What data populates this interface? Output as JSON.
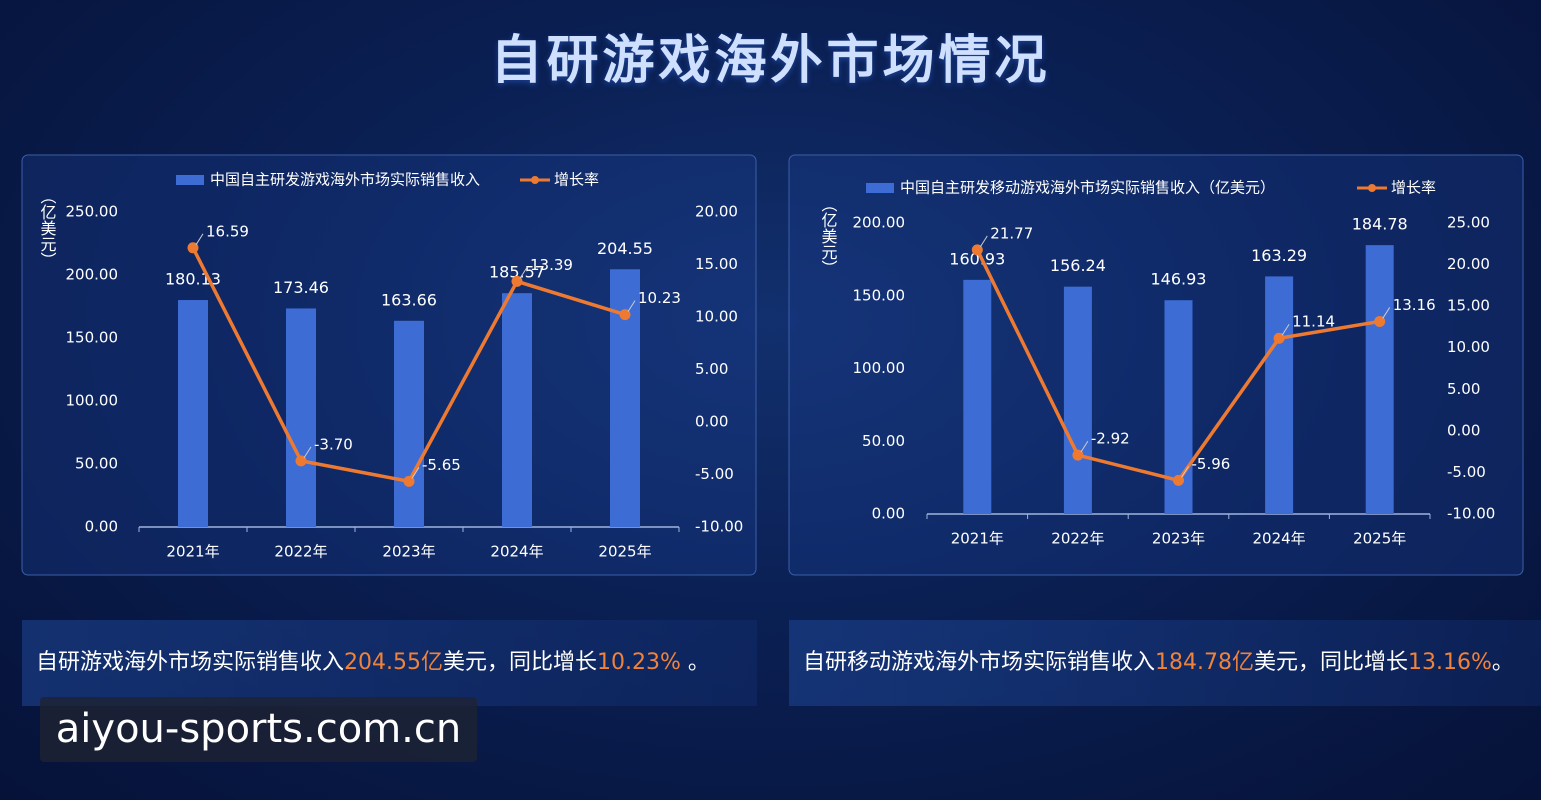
{
  "title": "自研游戏海外市场情况",
  "chart_data": [
    {
      "type": "combo",
      "y_label": "（亿美元）",
      "categories": [
        "2021年",
        "2022年",
        "2023年",
        "2024年",
        "2025年"
      ],
      "series": [
        {
          "name": "中国自主研发游戏海外市场实际销售收入",
          "kind": "bar",
          "color": "#3d6cd4",
          "values": [
            180.13,
            173.46,
            163.66,
            185.57,
            204.55
          ],
          "value_labels": [
            "180.13",
            "173.46",
            "163.66",
            "185.57",
            "204.55"
          ]
        },
        {
          "name": "增长率",
          "kind": "line",
          "axis": "y2",
          "color": "#ee7a32",
          "values": [
            16.59,
            -3.7,
            -5.65,
            13.39,
            10.23
          ],
          "value_labels": [
            "16.59",
            "-3.70",
            "-5.65",
            "13.39",
            "10.23"
          ]
        }
      ],
      "ylim": [
        0,
        250
      ],
      "yticks": [
        {
          "value": 0,
          "label": "0.00"
        },
        {
          "value": 50,
          "label": "50.00"
        },
        {
          "value": 100,
          "label": "100.00"
        },
        {
          "value": 150,
          "label": "150.00"
        },
        {
          "value": 200,
          "label": "200.00"
        },
        {
          "value": 250,
          "label": "250.00"
        }
      ],
      "y2lim": [
        -10,
        20
      ],
      "y2ticks": [
        {
          "value": -10,
          "label": "-10.00"
        },
        {
          "value": -5,
          "label": "-5.00"
        },
        {
          "value": 0,
          "label": "0.00"
        },
        {
          "value": 5,
          "label": "5.00"
        },
        {
          "value": 10,
          "label": "10.00"
        },
        {
          "value": 15,
          "label": "15.00"
        },
        {
          "value": 20,
          "label": "20.00"
        }
      ]
    },
    {
      "type": "combo",
      "y_label": "（亿美元）",
      "categories": [
        "2021年",
        "2022年",
        "2023年",
        "2024年",
        "2025年"
      ],
      "series": [
        {
          "name": "中国自主研发移动游戏海外市场实际销售收入（亿美元）",
          "kind": "bar",
          "color": "#3d6cd4",
          "values": [
            160.93,
            156.24,
            146.93,
            163.29,
            184.78
          ],
          "value_labels": [
            "160.93",
            "156.24",
            "146.93",
            "163.29",
            "184.78"
          ]
        },
        {
          "name": "增长率",
          "kind": "line",
          "axis": "y2",
          "color": "#ee7a32",
          "values": [
            21.77,
            -2.92,
            -5.96,
            11.14,
            13.16
          ],
          "value_labels": [
            "21.77",
            "-2.92",
            "-5.96",
            "11.14",
            "13.16"
          ]
        }
      ],
      "ylim": [
        0,
        200
      ],
      "yticks": [
        {
          "value": 0,
          "label": "0.00"
        },
        {
          "value": 50,
          "label": "50.00"
        },
        {
          "value": 100,
          "label": "100.00"
        },
        {
          "value": 150,
          "label": "150.00"
        },
        {
          "value": 200,
          "label": "200.00"
        }
      ],
      "y2lim": [
        -10,
        25
      ],
      "y2ticks": [
        {
          "value": -10,
          "label": "-10.00"
        },
        {
          "value": -5,
          "label": "-5.00"
        },
        {
          "value": 0,
          "label": "0.00"
        },
        {
          "value": 5,
          "label": "5.00"
        },
        {
          "value": 10,
          "label": "10.00"
        },
        {
          "value": 15,
          "label": "15.00"
        },
        {
          "value": 20,
          "label": "20.00"
        },
        {
          "value": 25,
          "label": "25.00"
        }
      ]
    }
  ],
  "captions": [
    {
      "parts": [
        {
          "text": "自研游戏海外市场实际销售收入",
          "color": "#ffffff"
        },
        {
          "text": "204.55亿",
          "color": "#f0823a"
        },
        {
          "text": "美元，同比增长",
          "color": "#ffffff"
        },
        {
          "text": "10.23%",
          "color": "#f0823a"
        },
        {
          "text": " 。",
          "color": "#ffffff"
        }
      ]
    },
    {
      "parts": [
        {
          "text": "自研移动游戏海外市场实际销售收入",
          "color": "#ffffff"
        },
        {
          "text": "184.78亿",
          "color": "#f0823a"
        },
        {
          "text": "美元，同比增长",
          "color": "#ffffff"
        },
        {
          "text": "13.16%",
          "color": "#f0823a"
        },
        {
          "text": "。",
          "color": "#ffffff"
        }
      ]
    }
  ],
  "watermark": "aiyou-sports.com.cn"
}
